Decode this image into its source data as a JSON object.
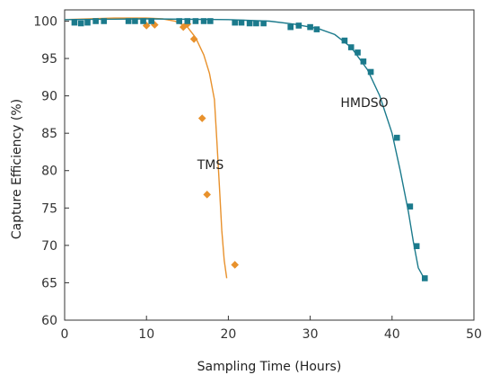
{
  "chart_data": {
    "type": "scatter",
    "title": "",
    "xlabel": "Sampling Time (Hours)",
    "ylabel": "Capture Efficiency (%)",
    "xlim": [
      0,
      50
    ],
    "ylim": [
      60,
      101.5
    ],
    "xticks": [
      0,
      10,
      20,
      30,
      40,
      50
    ],
    "yticks": [
      60,
      65,
      70,
      75,
      80,
      85,
      90,
      95,
      100
    ],
    "grid": false,
    "legend": "none",
    "series": [
      {
        "name": "TMS",
        "color": "#E8912C",
        "marker": "diamond",
        "points": [
          [
            10.0,
            99.4
          ],
          [
            11.0,
            99.5
          ],
          [
            14.5,
            99.2
          ],
          [
            15.0,
            99.6
          ],
          [
            15.8,
            97.6
          ],
          [
            16.8,
            87.0
          ],
          [
            17.4,
            76.8
          ],
          [
            20.8,
            67.4
          ]
        ],
        "curve": [
          [
            0.0,
            100.2
          ],
          [
            6.0,
            100.4
          ],
          [
            10.0,
            100.4
          ],
          [
            12.0,
            100.3
          ],
          [
            13.5,
            100.0
          ],
          [
            15.0,
            99.2
          ],
          [
            16.0,
            97.8
          ],
          [
            17.0,
            95.5
          ],
          [
            17.7,
            93.0
          ],
          [
            18.3,
            89.5
          ],
          [
            18.6,
            84.0
          ],
          [
            18.9,
            78.0
          ],
          [
            19.2,
            72.0
          ],
          [
            19.5,
            68.0
          ],
          [
            19.8,
            65.6
          ]
        ]
      },
      {
        "name": "HMDSO",
        "color": "#1B7A8C",
        "marker": "square",
        "points": [
          [
            1.2,
            99.8
          ],
          [
            2.0,
            99.7
          ],
          [
            2.8,
            99.8
          ],
          [
            3.8,
            100.0
          ],
          [
            4.8,
            100.0
          ],
          [
            7.8,
            100.0
          ],
          [
            8.6,
            100.0
          ],
          [
            9.6,
            100.0
          ],
          [
            10.6,
            100.0
          ],
          [
            14.0,
            100.0
          ],
          [
            15.0,
            100.0
          ],
          [
            16.0,
            100.0
          ],
          [
            17.0,
            100.0
          ],
          [
            17.8,
            100.0
          ],
          [
            20.8,
            99.8
          ],
          [
            21.6,
            99.8
          ],
          [
            22.6,
            99.7
          ],
          [
            23.4,
            99.7
          ],
          [
            24.3,
            99.7
          ],
          [
            27.6,
            99.2
          ],
          [
            28.6,
            99.4
          ],
          [
            30.0,
            99.2
          ],
          [
            30.8,
            98.9
          ],
          [
            34.2,
            97.4
          ],
          [
            35.0,
            96.5
          ],
          [
            35.8,
            95.8
          ],
          [
            36.5,
            94.6
          ],
          [
            37.4,
            93.2
          ],
          [
            40.6,
            84.4
          ],
          [
            42.2,
            75.2
          ],
          [
            43.0,
            69.9
          ],
          [
            44.0,
            65.6
          ]
        ],
        "curve": [
          [
            0.0,
            100.2
          ],
          [
            10.0,
            100.3
          ],
          [
            20.0,
            100.2
          ],
          [
            25.0,
            100.0
          ],
          [
            28.0,
            99.6
          ],
          [
            31.0,
            99.0
          ],
          [
            33.0,
            98.2
          ],
          [
            35.0,
            96.5
          ],
          [
            37.0,
            93.5
          ],
          [
            38.5,
            90.0
          ],
          [
            40.0,
            85.0
          ],
          [
            41.0,
            80.0
          ],
          [
            42.0,
            74.5
          ],
          [
            42.6,
            70.5
          ],
          [
            43.2,
            67.0
          ],
          [
            44.0,
            65.4
          ]
        ]
      }
    ],
    "annotations": [
      {
        "text": "TMS",
        "x": 16.2,
        "y": 80.2
      },
      {
        "text": "HMDSO",
        "x": 33.7,
        "y": 88.5
      }
    ]
  }
}
